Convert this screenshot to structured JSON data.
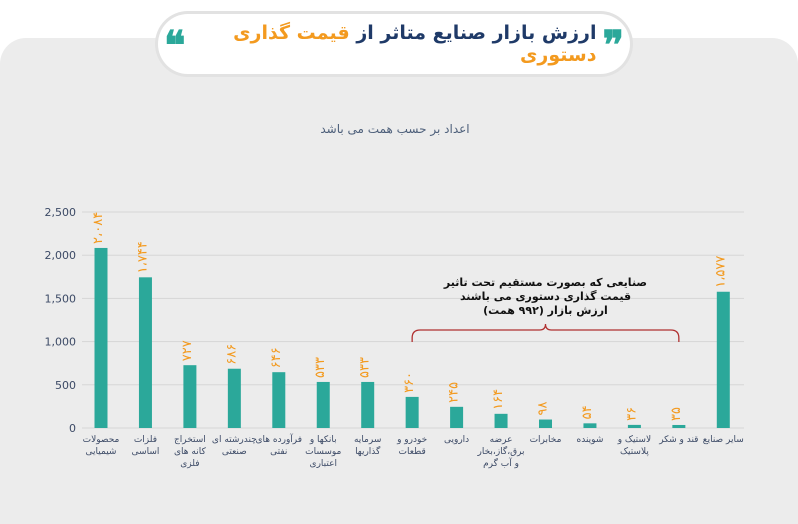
{
  "header": {
    "title_main": "ارزش بازار صنایع متاثر از ",
    "title_accent": "قیمت گذاری دستوری",
    "open_quote": "❞",
    "close_quote": "❝"
  },
  "chart_data": {
    "type": "bar",
    "subtitle": "اعداد بر حسب همت می باشد",
    "ylim": [
      0,
      2500
    ],
    "yticks": [
      "0",
      "500",
      "1,000",
      "1,500",
      "2,000",
      "2,500"
    ],
    "grid": true,
    "categories": [
      [
        "محصولات",
        "شیمیایی"
      ],
      [
        "فلزات",
        "اساسی"
      ],
      [
        "استخراج",
        "کانه های",
        "فلزی"
      ],
      [
        "چندرشته ای",
        "صنعتی"
      ],
      [
        "فرآورده های",
        "نفتی"
      ],
      [
        "بانکها و",
        "موسسات",
        "اعتباری"
      ],
      [
        "سرمایه",
        "گذاریها"
      ],
      [
        "خودرو و",
        "قطعات"
      ],
      [
        "دارویی"
      ],
      [
        "عرضه",
        "برق،گاز،بخار",
        "و آب گرم"
      ],
      [
        "مخابرات"
      ],
      [
        "شوینده"
      ],
      [
        "لاستیک و",
        "پلاستیک"
      ],
      [
        "قند و شکر"
      ],
      [
        "سایر صنایع"
      ]
    ],
    "values": [
      2084,
      1744,
      727,
      686,
      646,
      533,
      533,
      360,
      245,
      164,
      98,
      54,
      36,
      35,
      1577
    ],
    "value_labels": [
      "۲،۰۸۴",
      "۱،۷۴۴",
      "۷۲۷",
      "۶۸۶",
      "۶۴۶",
      "۵۳۳",
      "۵۳۳",
      "۳۶۰",
      "۲۴۵",
      "۱۶۴",
      "۹۸",
      "۵۴",
      "۳۶",
      "۳۵",
      "۱،۵۷۷"
    ],
    "bar_color": "#2ba89a",
    "label_color": "#f39a1f",
    "annotation": {
      "lines": [
        "صنایعی که بصورت مستقیم تحت تاثیر",
        "قیمت گذاری دستوری می باشند",
        "ارزش بازار (۹۹۲ همت)"
      ],
      "from_index": 7,
      "to_index": 13,
      "bracket_color": "#b03030"
    }
  }
}
